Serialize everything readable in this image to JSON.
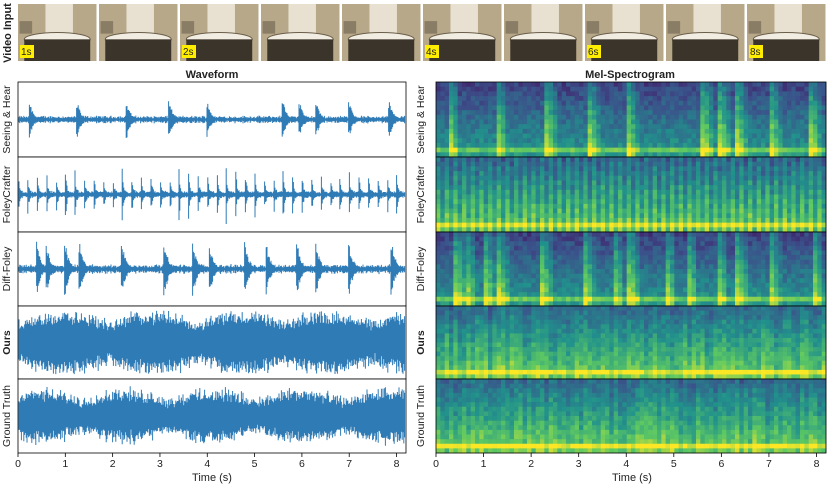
{
  "figure": {
    "video_row_label": "Video Input",
    "waveform_title": "Waveform",
    "spectrogram_title": "Mel-Spectrogram",
    "waveform_color": "#2f7bb6",
    "frame_badge_color": "#ffee00",
    "frame_tint": "#b8a88a"
  },
  "video_frames": [
    {
      "badge": "1s"
    },
    {
      "badge": ""
    },
    {
      "badge": "2s"
    },
    {
      "badge": ""
    },
    {
      "badge": ""
    },
    {
      "badge": "4s"
    },
    {
      "badge": ""
    },
    {
      "badge": "6s"
    },
    {
      "badge": ""
    },
    {
      "badge": "8s"
    }
  ],
  "chart_data": [
    {
      "type": "line",
      "title": "Waveform",
      "xlabel": "Time (s)",
      "xlim": [
        0,
        8.2
      ],
      "x_ticks": [
        0,
        1,
        2,
        3,
        4,
        5,
        6,
        7,
        8
      ],
      "series": [
        {
          "name": "Seeing & Hear",
          "bold": false,
          "style": "sparse",
          "peaks_s": [
            0.25,
            1.25,
            2.3,
            3.2,
            4.0,
            5.6,
            5.95,
            6.3,
            7.0,
            7.85
          ],
          "baseline_amp": 0.12,
          "peak_amp": 0.55
        },
        {
          "name": "FoleyCrafter",
          "bold": false,
          "style": "periodic",
          "peak_period_s": 0.2,
          "baseline_amp": 0.1,
          "peak_amp": 0.9
        },
        {
          "name": "Diff-Foley",
          "bold": false,
          "style": "sparse",
          "peaks_s": [
            0.4,
            0.6,
            1.0,
            1.3,
            2.2,
            3.1,
            3.7,
            4.05,
            4.8,
            5.25,
            5.9,
            6.3,
            7.0,
            7.9
          ],
          "baseline_amp": 0.15,
          "peak_amp": 0.8
        },
        {
          "name": "Ours",
          "bold": true,
          "style": "dense",
          "baseline_amp": 0.85,
          "peak_amp": 0.95
        },
        {
          "name": "Ground Truth",
          "bold": false,
          "style": "dense",
          "baseline_amp": 0.65,
          "peak_amp": 0.95
        }
      ]
    },
    {
      "type": "heatmap",
      "title": "Mel-Spectrogram",
      "xlabel": "Time (s)",
      "xlim": [
        0,
        8.2
      ],
      "x_ticks": [
        0,
        1,
        2,
        3,
        4,
        5,
        6,
        7,
        8
      ],
      "colormap": "viridis",
      "series": [
        {
          "name": "Seeing & Hear",
          "bold": false
        },
        {
          "name": "FoleyCrafter",
          "bold": false
        },
        {
          "name": "Diff-Foley",
          "bold": false
        },
        {
          "name": "Ours",
          "bold": true
        },
        {
          "name": "Ground Truth",
          "bold": false
        }
      ]
    }
  ]
}
